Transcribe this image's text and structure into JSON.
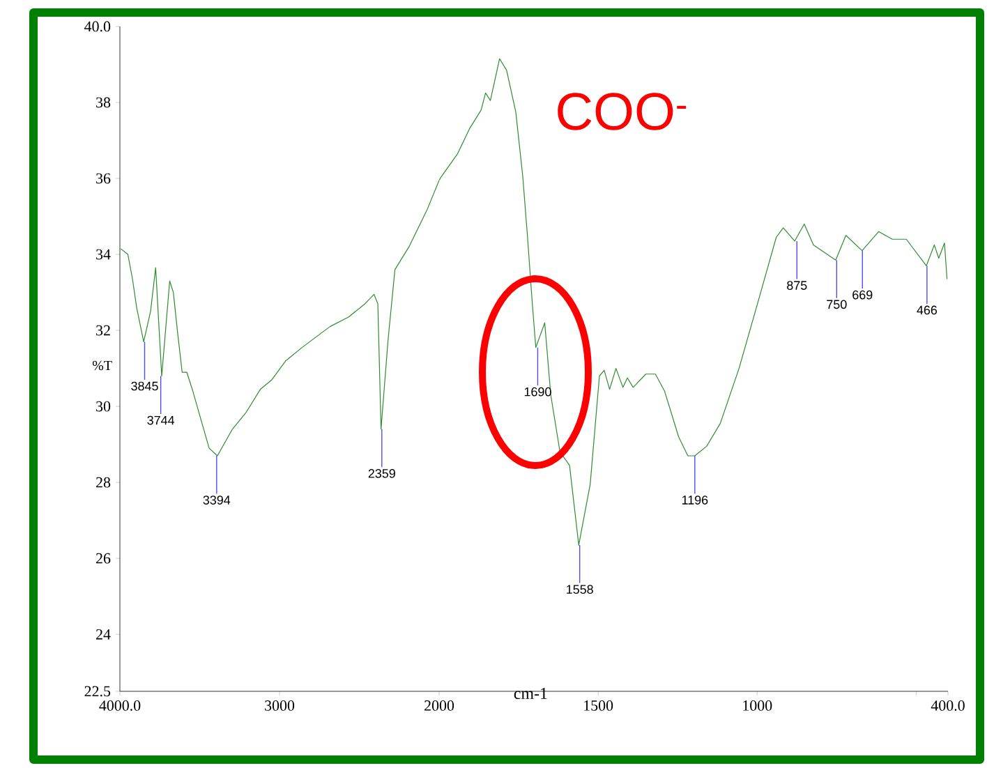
{
  "chart_data": [
    {
      "type": "line",
      "ylabel": "%T",
      "xlim": [
        4000,
        2000
      ],
      "ylim": [
        22.5,
        40
      ],
      "xticks": [
        {
          "value": 4000,
          "label": "4000.0"
        },
        3000,
        2000
      ],
      "yticks": [
        22.5,
        24,
        26,
        28,
        30,
        32,
        34,
        36,
        38,
        {
          "value": 40,
          "label": "40.0"
        }
      ],
      "series": [
        {
          "color": "#2e8b2e",
          "x": [
            3995,
            3950,
            3921,
            3895,
            3851,
            3808,
            3776,
            3738,
            3688,
            3665,
            3640,
            3610,
            3581,
            3543,
            3441,
            3389,
            3295,
            3208,
            3120,
            3048,
            2961,
            2859,
            2684,
            2568,
            2465,
            2408,
            2384,
            2364,
            2320,
            2277,
            2189,
            2073,
            2000
          ],
          "values": [
            34.15,
            34.0,
            33.35,
            32.6,
            31.7,
            32.5,
            33.65,
            30.8,
            33.3,
            33.0,
            32.0,
            30.9,
            30.9,
            30.4,
            28.9,
            28.7,
            29.4,
            29.85,
            30.45,
            30.7,
            31.2,
            31.55,
            32.1,
            32.35,
            32.7,
            32.95,
            32.7,
            29.4,
            31.75,
            33.6,
            34.2,
            35.2,
            35.95
          ]
        }
      ],
      "annotations": [
        {
          "text": "3845",
          "x": 3845,
          "y": 31.7
        },
        {
          "text": "3744",
          "x": 3744,
          "y": 30.8
        },
        {
          "text": "3394",
          "x": 3394,
          "y": 28.7
        },
        {
          "text": "2359",
          "x": 2359,
          "y": 29.4
        }
      ]
    },
    {
      "type": "line",
      "xlabel": "cm-1",
      "tick_labels": "x",
      "xlim": [
        2000,
        400
      ],
      "ylim": [
        22.5,
        40
      ],
      "xticks": [
        1500,
        1000,
        {
          "value": 500,
          "label": null
        },
        {
          "value": 400,
          "label": "400.0"
        }
      ],
      "series": [
        {
          "color": "#2e8b2e",
          "x": [
            2000,
            1993,
            1942,
            1905,
            1868,
            1854,
            1839,
            1810,
            1788,
            1759,
            1737,
            1722,
            1707,
            1696,
            1668,
            1649,
            1620,
            1590,
            1561,
            1525,
            1496,
            1481,
            1464,
            1444,
            1422,
            1408,
            1390,
            1350,
            1320,
            1291,
            1247,
            1218,
            1196,
            1159,
            1116,
            1057,
            999,
            940,
            918,
            882,
            852,
            823,
            753,
            721,
            670,
            618,
            575,
            531,
            468,
            443,
            429,
            411,
            403
          ],
          "values": [
            35.95,
            36.05,
            36.65,
            37.3,
            37.8,
            38.25,
            38.05,
            39.15,
            38.85,
            37.75,
            36.05,
            34.45,
            32.7,
            31.55,
            32.2,
            30.3,
            28.8,
            28.45,
            26.35,
            27.95,
            30.8,
            30.95,
            30.45,
            31.0,
            30.5,
            30.75,
            30.5,
            30.85,
            30.85,
            30.4,
            29.2,
            28.7,
            28.7,
            28.95,
            29.55,
            31.0,
            32.7,
            34.45,
            34.7,
            34.35,
            34.8,
            34.25,
            33.85,
            34.5,
            34.1,
            34.6,
            34.4,
            34.4,
            33.7,
            34.25,
            33.9,
            34.3,
            33.35
          ]
        }
      ],
      "annotations": [
        "COO$^{-}$",
        {
          "text": "1690",
          "x": 1690,
          "y": 31.55
        },
        {
          "text": "1558",
          "x": 1558,
          "y": 26.35
        },
        {
          "text": "1196",
          "x": 1196,
          "y": 28.7
        },
        {
          "text": "875",
          "x": 875,
          "y": 34.35
        },
        {
          "text": "750",
          "x": 750,
          "y": 33.85
        },
        {
          "text": "669",
          "x": 669,
          "y": 34.1
        },
        {
          "text": "466",
          "x": 466,
          "y": 33.7
        }
      ]
    }
  ]
}
